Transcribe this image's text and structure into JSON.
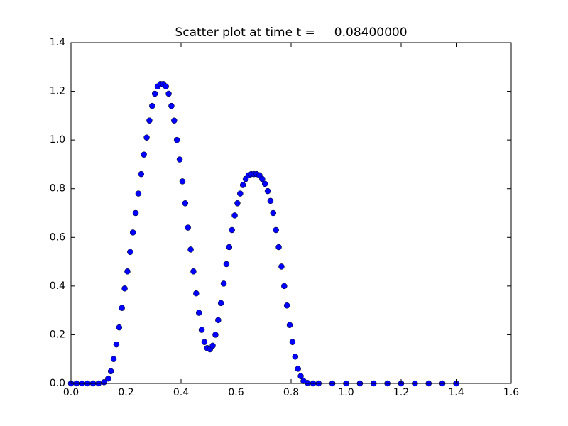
{
  "chart_data": {
    "type": "scatter",
    "title": "Scatter plot at time t =     0.08400000",
    "x": [
      0.0,
      0.02,
      0.04,
      0.06,
      0.08,
      0.1,
      0.12,
      0.135,
      0.145,
      0.155,
      0.165,
      0.175,
      0.185,
      0.195,
      0.205,
      0.215,
      0.225,
      0.235,
      0.245,
      0.255,
      0.265,
      0.275,
      0.285,
      0.295,
      0.305,
      0.315,
      0.325,
      0.335,
      0.345,
      0.355,
      0.365,
      0.375,
      0.385,
      0.395,
      0.405,
      0.415,
      0.425,
      0.435,
      0.445,
      0.455,
      0.465,
      0.475,
      0.485,
      0.495,
      0.505,
      0.515,
      0.525,
      0.535,
      0.545,
      0.555,
      0.565,
      0.575,
      0.585,
      0.595,
      0.605,
      0.615,
      0.625,
      0.635,
      0.645,
      0.655,
      0.665,
      0.675,
      0.685,
      0.695,
      0.705,
      0.715,
      0.725,
      0.735,
      0.745,
      0.755,
      0.765,
      0.775,
      0.785,
      0.795,
      0.805,
      0.815,
      0.825,
      0.835,
      0.845,
      0.86,
      0.88,
      0.9,
      0.95,
      1.0,
      1.05,
      1.1,
      1.15,
      1.2,
      1.25,
      1.3,
      1.35,
      1.4
    ],
    "values": [
      0,
      0,
      0,
      0,
      0,
      0,
      0.005,
      0.02,
      0.05,
      0.1,
      0.16,
      0.23,
      0.31,
      0.39,
      0.46,
      0.54,
      0.62,
      0.7,
      0.78,
      0.86,
      0.94,
      1.01,
      1.08,
      1.14,
      1.19,
      1.22,
      1.23,
      1.23,
      1.22,
      1.19,
      1.14,
      1.08,
      1.0,
      0.92,
      0.83,
      0.74,
      0.64,
      0.55,
      0.46,
      0.37,
      0.29,
      0.22,
      0.17,
      0.145,
      0.14,
      0.155,
      0.2,
      0.26,
      0.33,
      0.41,
      0.49,
      0.56,
      0.63,
      0.69,
      0.74,
      0.78,
      0.815,
      0.84,
      0.855,
      0.86,
      0.86,
      0.86,
      0.855,
      0.84,
      0.82,
      0.79,
      0.75,
      0.7,
      0.63,
      0.56,
      0.48,
      0.4,
      0.32,
      0.24,
      0.17,
      0.11,
      0.06,
      0.03,
      0.01,
      0.002,
      0,
      0,
      0,
      0,
      0,
      0,
      0,
      0,
      0,
      0,
      0,
      0
    ],
    "color": "#0000ff",
    "xlim": [
      0,
      1.6
    ],
    "ylim": [
      0,
      1.4
    ],
    "xticks": [
      {
        "value": 0,
        "label": "0.0"
      },
      {
        "value": 0.2,
        "label": "0.2"
      },
      {
        "value": 0.4,
        "label": "0.4"
      },
      {
        "value": 0.6,
        "label": "0.6"
      },
      {
        "value": 0.8,
        "label": "0.8"
      },
      {
        "value": 1,
        "label": "1.0"
      },
      {
        "value": 1.2,
        "label": "1.2"
      },
      {
        "value": 1.4,
        "label": "1.4"
      },
      {
        "value": 1.6,
        "label": "1.6"
      }
    ],
    "yticks": [
      {
        "value": 0,
        "label": "0.0"
      },
      {
        "value": 0.2,
        "label": "0.2"
      },
      {
        "value": 0.4,
        "label": "0.4"
      },
      {
        "value": 0.6,
        "label": "0.6"
      },
      {
        "value": 0.8,
        "label": "0.8"
      },
      {
        "value": 1,
        "label": "1.0"
      },
      {
        "value": 1.2,
        "label": "1.2"
      },
      {
        "value": 1.4,
        "label": "1.4"
      }
    ],
    "grid": false
  }
}
